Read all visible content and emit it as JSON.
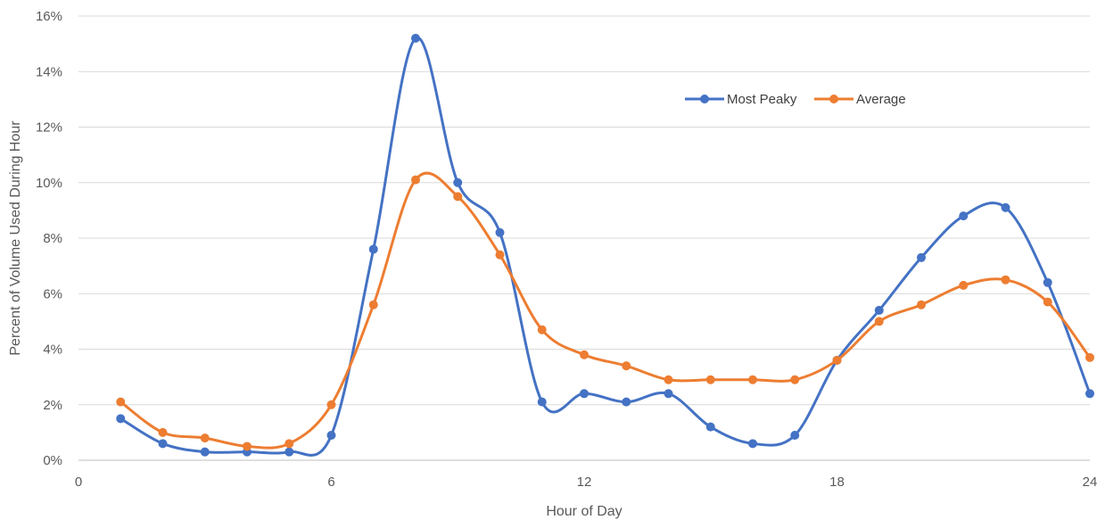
{
  "chart_data": {
    "type": "line",
    "title": "",
    "xlabel": "Hour of Day",
    "ylabel": "Percent of Volume Used During Hour",
    "xlim": [
      0,
      24
    ],
    "ylim": [
      0,
      16
    ],
    "x_ticks": [
      0,
      6,
      12,
      18,
      24
    ],
    "y_ticks": [
      0,
      2,
      4,
      6,
      8,
      10,
      12,
      14,
      16
    ],
    "y_tick_suffix": "%",
    "grid": "horizontal",
    "legend_position": "top-right",
    "smooth": true,
    "x": [
      1,
      2,
      3,
      4,
      5,
      6,
      7,
      8,
      9,
      10,
      11,
      12,
      13,
      14,
      15,
      16,
      17,
      18,
      19,
      20,
      21,
      22,
      23,
      24
    ],
    "series": [
      {
        "name": "Most Peaky",
        "color": "#4472C4",
        "values": [
          1.5,
          0.6,
          0.3,
          0.3,
          0.3,
          0.9,
          7.6,
          15.2,
          10.0,
          8.2,
          2.1,
          2.4,
          2.1,
          2.4,
          1.2,
          0.6,
          0.9,
          3.6,
          5.4,
          7.3,
          8.8,
          9.1,
          6.4,
          2.4
        ]
      },
      {
        "name": "Average",
        "color": "#ED7D31",
        "values": [
          2.1,
          1.0,
          0.8,
          0.5,
          0.6,
          2.0,
          5.6,
          10.1,
          9.5,
          7.4,
          4.7,
          3.8,
          3.4,
          2.9,
          2.9,
          2.9,
          2.9,
          3.6,
          5.0,
          5.6,
          6.3,
          6.5,
          5.7,
          3.7
        ]
      }
    ]
  }
}
